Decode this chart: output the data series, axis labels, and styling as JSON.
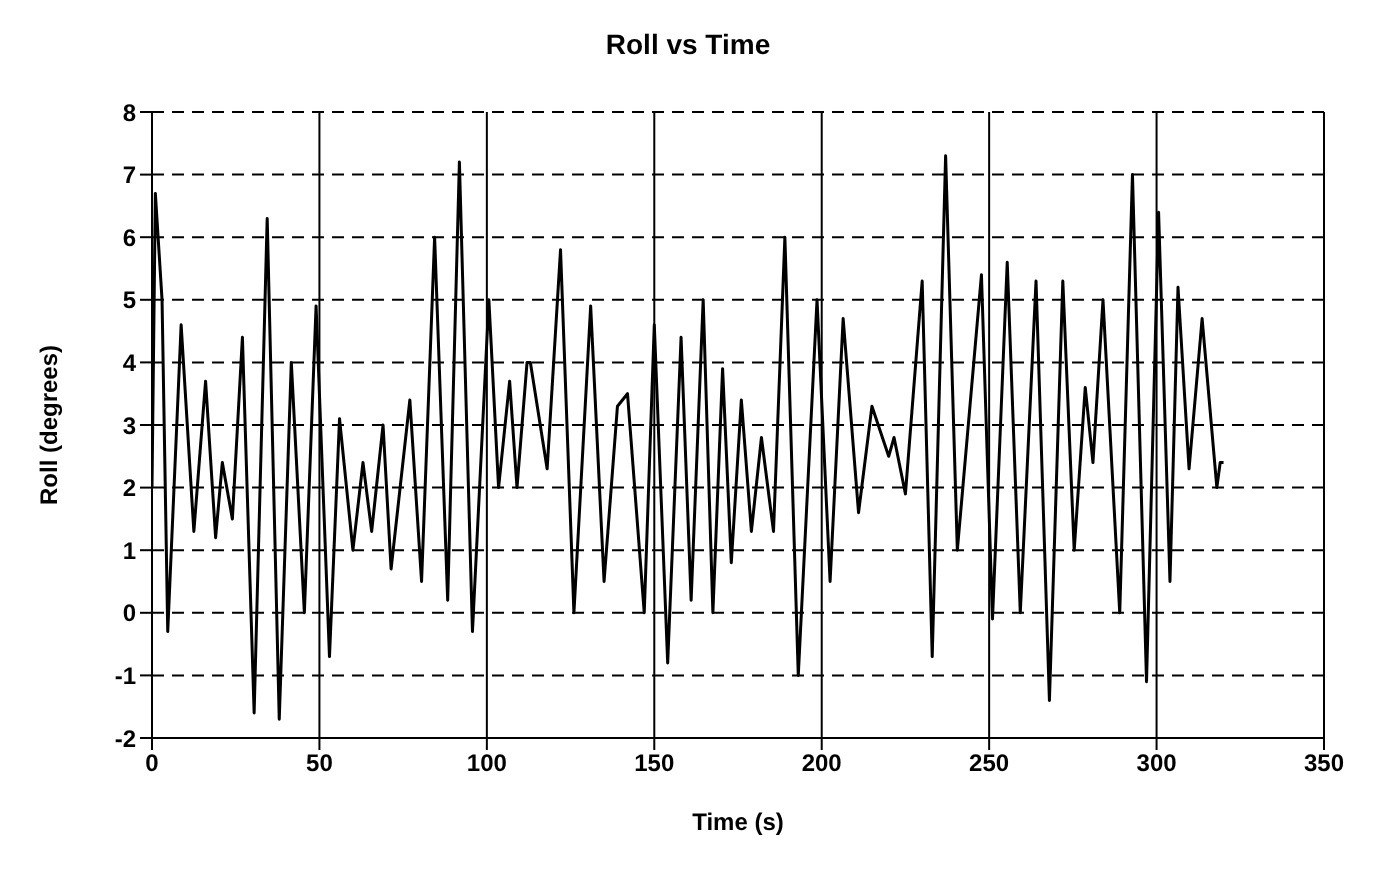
{
  "chart_data": {
    "type": "line",
    "title": "Roll vs Time",
    "xlabel": "Time (s)",
    "ylabel": "Roll (degrees)",
    "x": [
      0,
      1,
      3,
      4.7,
      8.7,
      12.5,
      16,
      19,
      21,
      24,
      27,
      30.5,
      34.4,
      38,
      41.6,
      45.5,
      49,
      53,
      56,
      60,
      63,
      65.6,
      69,
      71.4,
      77,
      80.5,
      84.4,
      88.3,
      91.8,
      95.7,
      100.6,
      103.5,
      106.8,
      109,
      112,
      113,
      118,
      122,
      126,
      131,
      135,
      139,
      142,
      147,
      150,
      154,
      158,
      161,
      164.6,
      167.5,
      170.4,
      173,
      176,
      179,
      182,
      185.6,
      189,
      193,
      198.6,
      202.5,
      206.4,
      211,
      215,
      220,
      221.6,
      225,
      230,
      233,
      237,
      240.5,
      247.7,
      251,
      255.4,
      259.3,
      264,
      268,
      272,
      275.4,
      278.7,
      281,
      284,
      289,
      292.8,
      297,
      300.6,
      304,
      306.4,
      309.7,
      313.6,
      318,
      319,
      320
    ],
    "series": [
      {
        "color": "#000000",
        "values": [
          2,
          6.7,
          5,
          -0.3,
          4.6,
          1.3,
          3.7,
          1.2,
          2.4,
          1.5,
          4.4,
          -1.6,
          6.3,
          -1.7,
          4,
          0,
          4.9,
          -0.7,
          3.1,
          1,
          2.4,
          1.3,
          3,
          0.7,
          3.4,
          0.5,
          6,
          0.2,
          7.2,
          -0.3,
          5,
          2,
          3.7,
          2,
          4,
          4,
          2.3,
          5.8,
          0,
          4.9,
          0.5,
          3.3,
          3.5,
          0,
          4.6,
          -0.8,
          4.4,
          0.2,
          5,
          0,
          3.9,
          0.8,
          3.4,
          1.3,
          2.8,
          1.3,
          6,
          -1,
          5,
          0.5,
          4.7,
          1.6,
          3.3,
          2.5,
          2.8,
          1.9,
          5.3,
          -0.7,
          7.3,
          1,
          5.4,
          -0.1,
          5.6,
          0,
          5.3,
          -1.4,
          5.3,
          1,
          3.6,
          2.4,
          5,
          0,
          7,
          -1.1,
          6.4,
          0.5,
          5.2,
          2.3,
          4.7,
          2,
          2.4,
          2.4
        ]
      }
    ],
    "xlim": [
      0,
      350
    ],
    "xticks": [
      0,
      50,
      100,
      150,
      200,
      250,
      300,
      350
    ],
    "ylim": [
      -2,
      8
    ],
    "yticks": [
      -2,
      -1,
      0,
      1,
      2,
      3,
      4,
      5,
      6,
      7,
      8
    ],
    "grid": true,
    "marker": "none",
    "line_style": "solid"
  }
}
